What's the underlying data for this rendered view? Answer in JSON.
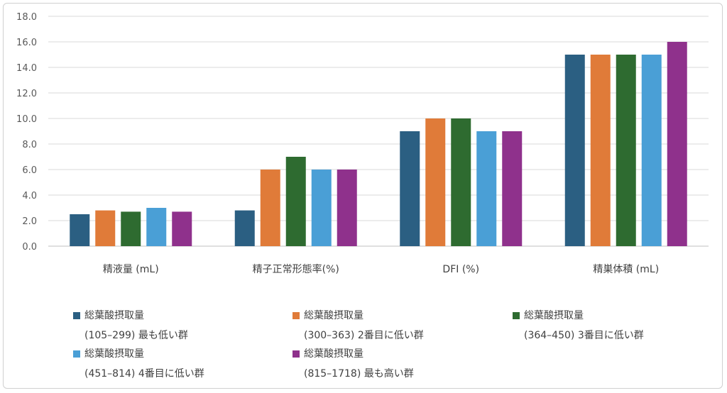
{
  "chart_data": {
    "type": "bar",
    "categories": [
      "精液量 (mL)",
      "精子正常形態率(%)",
      "DFI (%)",
      "精巣体積 (mL)"
    ],
    "ylim": [
      0,
      18
    ],
    "yticks": [
      "0.0",
      "2.0",
      "4.0",
      "6.0",
      "8.0",
      "10.0",
      "12.0",
      "14.0",
      "16.0",
      "18.0"
    ],
    "grid": true,
    "legend_position": "bottom",
    "series": [
      {
        "name": "総葉酸摂取量",
        "range": "(105–299) 最も低い群",
        "color": "#2b5f82",
        "values": [
          2.5,
          2.8,
          9.0,
          15.0
        ]
      },
      {
        "name": "総葉酸摂取量",
        "range": "(300–363) 2番目に低い群",
        "color": "#e07b39",
        "values": [
          2.8,
          6.0,
          10.0,
          15.0
        ]
      },
      {
        "name": "総葉酸摂取量",
        "range": "(364–450) 3番目に低い群",
        "color": "#2e6b30",
        "values": [
          2.7,
          7.0,
          10.0,
          15.0
        ]
      },
      {
        "name": "総葉酸摂取量",
        "range": "(451–814) 4番目に低い群",
        "color": "#4a9fd6",
        "values": [
          3.0,
          6.0,
          9.0,
          15.0
        ]
      },
      {
        "name": "総葉酸摂取量",
        "range": "(815–1718) 最も高い群",
        "color": "#8f318c",
        "values": [
          2.7,
          6.0,
          9.0,
          16.0
        ]
      }
    ]
  }
}
